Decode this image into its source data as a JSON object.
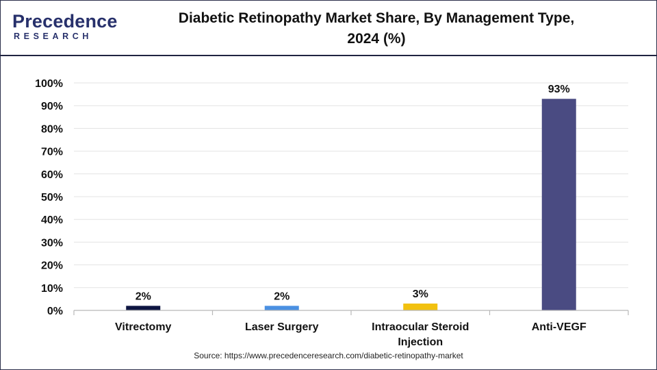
{
  "logo": {
    "word": "Precedence",
    "sub": "RESEARCH"
  },
  "chart_data": {
    "type": "bar",
    "title": "Diabetic Retinopathy Market Share, By Management Type, 2024 (%)",
    "title_lines": [
      "Diabetic Retinopathy Market Share, By Management Type,",
      "2024 (%)"
    ],
    "categories": [
      "Vitrectomy",
      "Laser Surgery",
      "Intraocular Steroid Injection",
      "Anti-VEGF"
    ],
    "category_lines": [
      [
        "Vitrectomy"
      ],
      [
        "Laser Surgery"
      ],
      [
        "Intraocular Steroid",
        "Injection"
      ],
      [
        "Anti-VEGF"
      ]
    ],
    "values": [
      2,
      2,
      3,
      93
    ],
    "value_labels": [
      "2%",
      "2%",
      "3%",
      "93%"
    ],
    "colors": [
      "#0d1541",
      "#4a90e2",
      "#f2c10f",
      "#4a4b82"
    ],
    "ylim": [
      0,
      100
    ],
    "yticks": [
      0,
      10,
      20,
      30,
      40,
      50,
      60,
      70,
      80,
      90,
      100
    ],
    "ytick_labels": [
      "0%",
      "10%",
      "20%",
      "30%",
      "40%",
      "50%",
      "60%",
      "70%",
      "80%",
      "90%",
      "100%"
    ],
    "xlabel": "",
    "ylabel": "",
    "grid": true
  },
  "source": "Source: https://www.precedenceresearch.com/diabetic-retinopathy-market"
}
